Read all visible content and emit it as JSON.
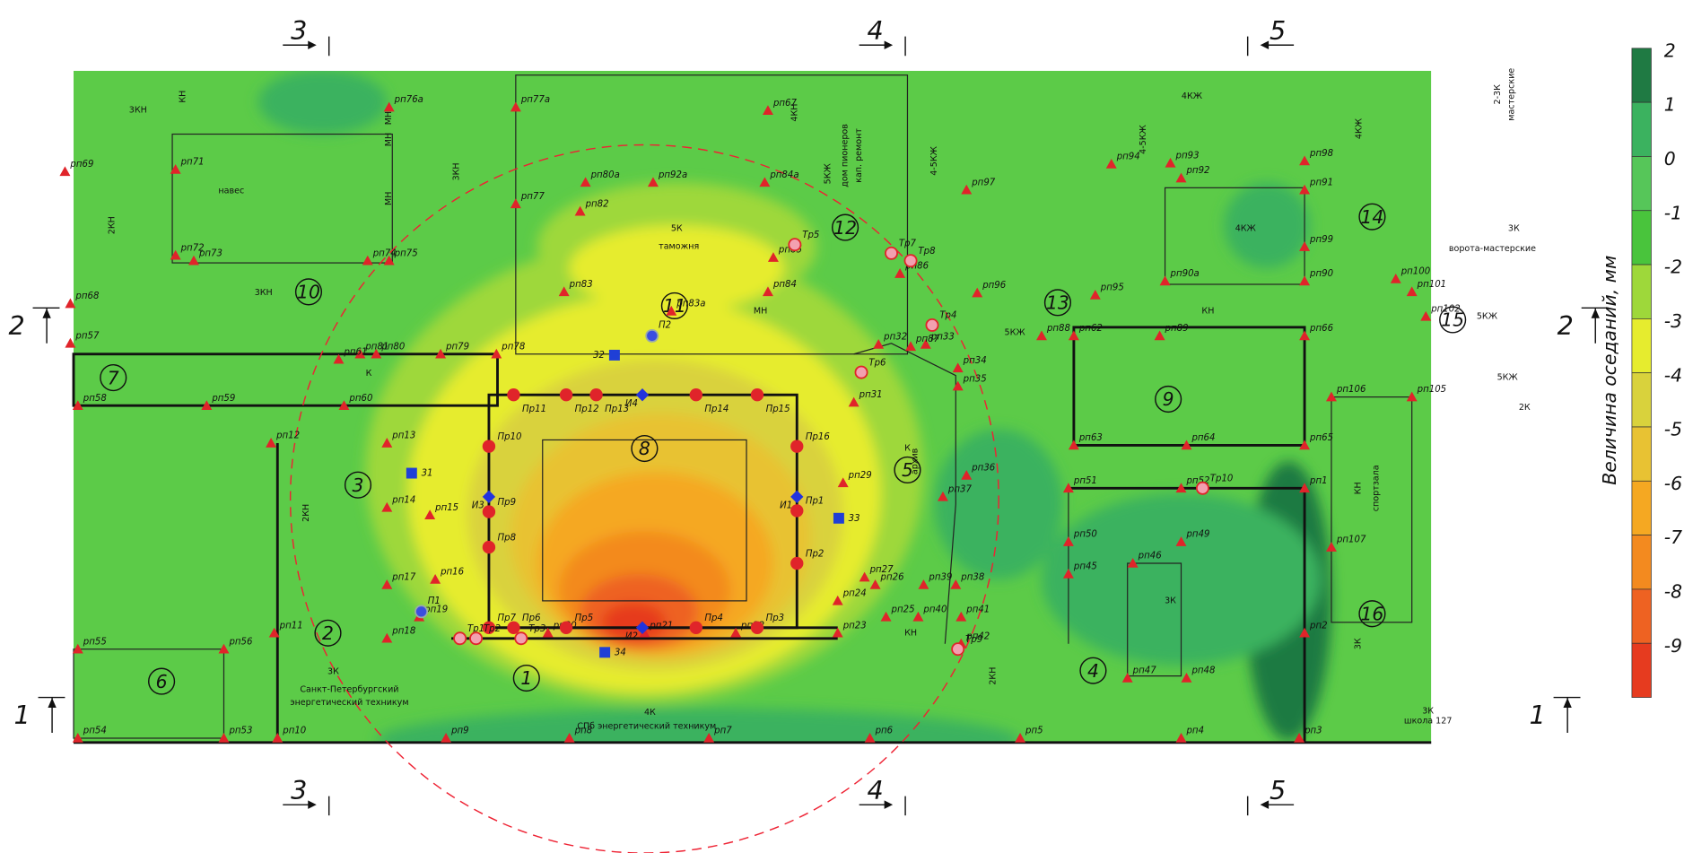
{
  "legend": {
    "title": "Величина оседаний, мм",
    "levels": [
      2,
      1,
      0,
      -1,
      -2,
      -3,
      -4,
      -5,
      -6,
      -7,
      -8,
      -9
    ],
    "colors": [
      "#1f7a43",
      "#3bb25f",
      "#56c659",
      "#49c43c",
      "#9ed83a",
      "#e6ec2e",
      "#d9d23c",
      "#e8c233",
      "#f5a822",
      "#f38a1f",
      "#ee6222",
      "#e63b1f"
    ]
  },
  "sections": [
    "3",
    "3",
    "4",
    "4",
    "5",
    "5",
    "2",
    "2",
    "1",
    "1"
  ],
  "buildings": [
    "1",
    "2",
    "3",
    "4",
    "5",
    "6",
    "7",
    "8",
    "9",
    "10",
    "11",
    "12",
    "13",
    "14",
    "15",
    "16"
  ],
  "structures": [
    "3КН",
    "навес",
    "3КН",
    "3КН",
    "2КН",
    "5К",
    "таможня",
    "МН",
    "5КЖ",
    "дом пионеров",
    "кап. ремонт",
    "4-5КЖ",
    "4КН",
    "5КЖ",
    "4КЖ",
    "4-5КЖ",
    "4КЖ",
    "4КЖ",
    "2-3К",
    "мастерские",
    "3К",
    "ворота-мастерские",
    "5КЖ",
    "КН",
    "5КЖ",
    "2К",
    "КН",
    "спортзала",
    "3К",
    "3К",
    "школа 127",
    "3К",
    "2КН",
    "4К",
    "СПб энергетический техникум",
    "3К",
    "Санкт-Петербургский",
    "энергетический техникум",
    "2КН",
    "К",
    "К",
    "архив",
    "КН",
    "МН",
    "МН",
    "МН",
    "КН"
  ],
  "benchmarks": [
    "рп69",
    "рп71",
    "рп72",
    "рп73",
    "рп74",
    "рп75",
    "рп76а",
    "рп77а",
    "рп77",
    "рп78",
    "рп79",
    "рп80",
    "рп81",
    "рп61",
    "рп68",
    "рп57",
    "рп58",
    "рп59",
    "рп60",
    "рп12",
    "рп13",
    "рп14",
    "рп15",
    "рп16",
    "рп17",
    "рп18",
    "рп19",
    "рп11",
    "рп55",
    "рп56",
    "рп54",
    "рп53",
    "рп10",
    "рп9",
    "рп8",
    "рп7",
    "рп6",
    "рп5",
    "рп4",
    "рп3",
    "рп20",
    "рп21",
    "рп22",
    "рп23",
    "рп24",
    "рп25",
    "рп26",
    "рп27",
    "рп39",
    "рп40",
    "рп41",
    "рп38",
    "рп42",
    "рп37",
    "рп36",
    "рп35",
    "рп34",
    "рп33",
    "рп32",
    "рп31",
    "рп29",
    "рп87",
    "рп88",
    "рп62",
    "рп89",
    "рп66",
    "рп63",
    "рп64",
    "рп65",
    "рп51",
    "рп52",
    "рп1",
    "рп50",
    "рп45",
    "рп46",
    "рп49",
    "рп47",
    "рп48",
    "рп2",
    "рп107",
    "рп106",
    "рп105",
    "рп102",
    "рп101",
    "рп100",
    "рп90",
    "рп90а",
    "рп99",
    "рп91",
    "рп98",
    "рп92",
    "рп93",
    "рп94",
    "рп95",
    "рп96",
    "рп97",
    "рп86",
    "рп85",
    "рп84",
    "рп83",
    "рп83а",
    "рп82",
    "рп80а",
    "рп92а",
    "рп84а",
    "рп67"
  ],
  "wall_points": [
    "Пр1",
    "Пр2",
    "Пр3",
    "Пр4",
    "Пр5",
    "Пр6",
    "Пр7",
    "Пр8",
    "Пр9",
    "Пр10",
    "Пр11",
    "Пр12",
    "Пр13",
    "Пр14",
    "Пр15",
    "Пр16"
  ],
  "crack_points": [
    "Тр1",
    "Тр2",
    "Тр3",
    "Тр4",
    "Тр5",
    "Тр6",
    "Тр7",
    "Тр8",
    "Тр9",
    "Тр10"
  ],
  "piezometers": [
    "П1",
    "П2"
  ],
  "inclinometers": [
    "И1",
    "И2",
    "И3",
    "И4"
  ],
  "wells": [
    "31",
    "32",
    "33",
    "34"
  ]
}
